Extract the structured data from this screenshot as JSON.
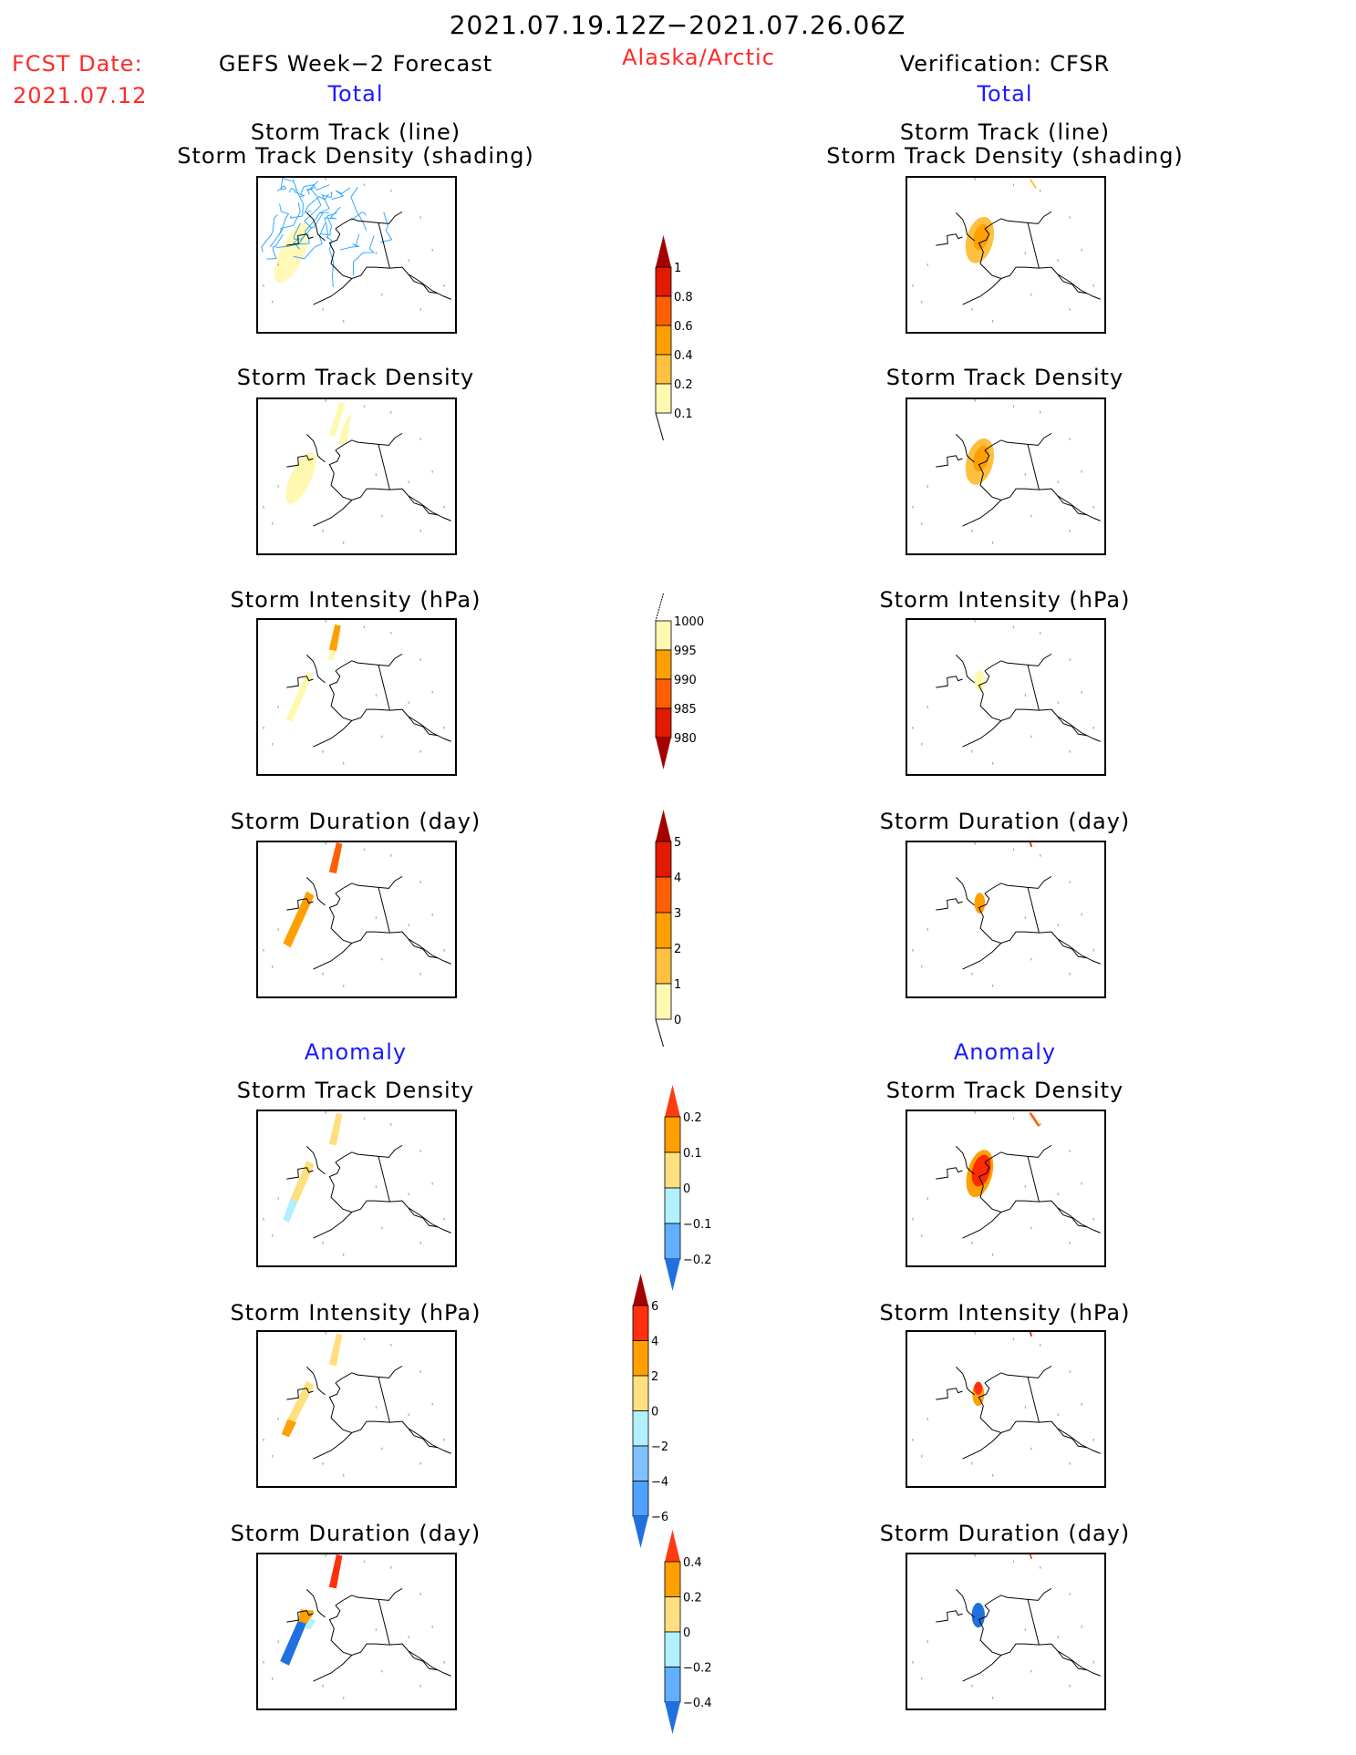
{
  "header": {
    "title": "2021.07.19.12Z−2021.07.26.06Z",
    "fcst_label": "FCST Date:",
    "fcst_date": "2021.07.12",
    "region": "Alaska/Arctic",
    "left_heading": "GEFS Week−2 Forecast",
    "right_heading": "Verification: CFSR",
    "total_label": "Total",
    "anomaly_label": "Anomaly"
  },
  "panels": {
    "track_line": "Storm Track (line)",
    "track_shading": "Storm Track Density (shading)",
    "density": "Storm Track Density",
    "intensity": "Storm Intensity (hPa)",
    "duration": "Storm Duration (day)"
  },
  "chart_data": [
    {
      "type": "heatmap",
      "title": "Storm Track Density (total)",
      "colorbar": {
        "ticks": [
          "0.1",
          "0.2",
          "0.4",
          "0.6",
          "0.8",
          "1"
        ],
        "colors": [
          "#fff8b0",
          "#ffc040",
          "#ffa000",
          "#ff5f00",
          "#e11a00",
          "#a50000"
        ]
      }
    },
    {
      "type": "heatmap",
      "title": "Storm Intensity (hPa) (total)",
      "colorbar": {
        "ticks": [
          "1000",
          "995",
          "990",
          "985",
          "980"
        ],
        "colors": [
          "#fff8b0",
          "#ffa000",
          "#ff5f00",
          "#e11a00",
          "#a50000"
        ]
      }
    },
    {
      "type": "heatmap",
      "title": "Storm Duration (day) (total)",
      "colorbar": {
        "ticks": [
          "0",
          "1",
          "2",
          "3",
          "4",
          "5"
        ],
        "colors": [
          "#fff8b0",
          "#ffc040",
          "#ffa000",
          "#ff5f00",
          "#e11a00",
          "#a50000"
        ]
      }
    },
    {
      "type": "heatmap",
      "title": "Storm Track Density (anomaly)",
      "colorbar": {
        "ticks": [
          "0.2",
          "0.1",
          "0",
          "−0.1",
          "−0.2"
        ],
        "colors": [
          "#ff3a10",
          "#ffa000",
          "#ffe080",
          "#b0f0ff",
          "#60b0ff",
          "#2070e0"
        ]
      }
    },
    {
      "type": "heatmap",
      "title": "Storm Intensity (hPa) (anomaly)",
      "colorbar": {
        "ticks": [
          "6",
          "4",
          "2",
          "0",
          "−2",
          "−4",
          "−6"
        ],
        "colors": [
          "#a50000",
          "#ff3010",
          "#ffa000",
          "#ffe080",
          "#b0f0ff",
          "#80c0ff",
          "#50a0ff",
          "#2070e0"
        ]
      }
    },
    {
      "type": "heatmap",
      "title": "Storm Duration (day) (anomaly)",
      "colorbar": {
        "ticks": [
          "0.4",
          "0.2",
          "0",
          "−0.2",
          "−0.4"
        ],
        "colors": [
          "#ff3a10",
          "#ffa000",
          "#ffe080",
          "#b0f0ff",
          "#60b0ff",
          "#2070e0"
        ]
      }
    }
  ]
}
